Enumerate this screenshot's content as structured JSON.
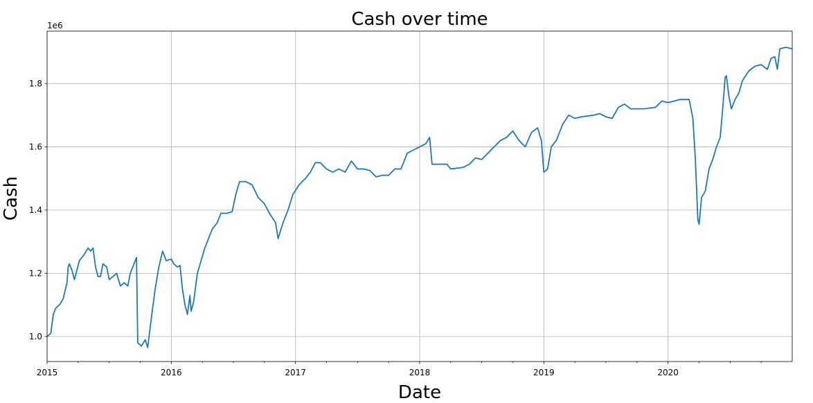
{
  "chart_data": {
    "type": "line",
    "title": "Cash over time",
    "x_label": "Date",
    "y_label": "Cash",
    "y_offset_label": "1e6",
    "x": [
      2015.0,
      2015.03,
      2015.05,
      2015.07,
      2015.1,
      2015.13,
      2015.16,
      2015.17,
      2015.18,
      2015.2,
      2015.22,
      2015.24,
      2015.26,
      2015.3,
      2015.33,
      2015.35,
      2015.37,
      2015.39,
      2015.41,
      2015.43,
      2015.45,
      2015.48,
      2015.5,
      2015.53,
      2015.56,
      2015.59,
      2015.62,
      2015.65,
      2015.67,
      2015.69,
      2015.72,
      2015.73,
      2015.76,
      2015.79,
      2015.81,
      2015.84,
      2015.87,
      2015.9,
      2015.93,
      2015.96,
      2016.0,
      2016.02,
      2016.05,
      2016.07,
      2016.09,
      2016.11,
      2016.13,
      2016.15,
      2016.16,
      2016.18,
      2016.21,
      2016.24,
      2016.27,
      2016.3,
      2016.33,
      2016.37,
      2016.4,
      2016.45,
      2016.49,
      2016.52,
      2016.55,
      2016.6,
      2016.65,
      2016.7,
      2016.75,
      2016.79,
      2016.84,
      2016.86,
      2016.9,
      2016.94,
      2016.98,
      2017.03,
      2017.08,
      2017.12,
      2017.16,
      2017.2,
      2017.25,
      2017.3,
      2017.35,
      2017.4,
      2017.45,
      2017.5,
      2017.55,
      2017.6,
      2017.65,
      2017.7,
      2017.75,
      2017.8,
      2017.85,
      2017.9,
      2017.95,
      2018.0,
      2018.05,
      2018.08,
      2018.1,
      2018.15,
      2018.22,
      2018.25,
      2018.35,
      2018.4,
      2018.45,
      2018.5,
      2018.55,
      2018.6,
      2018.65,
      2018.7,
      2018.75,
      2018.8,
      2018.85,
      2018.9,
      2018.95,
      2018.98,
      2019.0,
      2019.03,
      2019.06,
      2019.1,
      2019.15,
      2019.2,
      2019.25,
      2019.3,
      2019.4,
      2019.45,
      2019.5,
      2019.55,
      2019.6,
      2019.65,
      2019.7,
      2019.8,
      2019.9,
      2019.95,
      2020.0,
      2020.05,
      2020.1,
      2020.17,
      2020.2,
      2020.22,
      2020.24,
      2020.25,
      2020.27,
      2020.3,
      2020.33,
      2020.36,
      2020.39,
      2020.42,
      2020.44,
      2020.46,
      2020.47,
      2020.49,
      2020.51,
      2020.54,
      2020.57,
      2020.6,
      2020.65,
      2020.7,
      2020.75,
      2020.8,
      2020.83,
      2020.86,
      2020.88,
      2020.9,
      2020.95,
      2021.0
    ],
    "series": [
      {
        "name": "Cash",
        "color": "#1f77b4",
        "values": [
          1.0,
          1.01,
          1.07,
          1.09,
          1.1,
          1.12,
          1.17,
          1.22,
          1.23,
          1.21,
          1.18,
          1.21,
          1.24,
          1.26,
          1.28,
          1.27,
          1.28,
          1.22,
          1.19,
          1.19,
          1.23,
          1.22,
          1.18,
          1.19,
          1.2,
          1.16,
          1.17,
          1.16,
          1.2,
          1.22,
          1.25,
          0.98,
          0.97,
          0.99,
          0.965,
          1.06,
          1.15,
          1.22,
          1.27,
          1.24,
          1.245,
          1.23,
          1.22,
          1.225,
          1.15,
          1.1,
          1.07,
          1.13,
          1.08,
          1.11,
          1.2,
          1.24,
          1.28,
          1.31,
          1.34,
          1.36,
          1.39,
          1.39,
          1.395,
          1.45,
          1.49,
          1.49,
          1.48,
          1.44,
          1.42,
          1.39,
          1.36,
          1.31,
          1.36,
          1.4,
          1.45,
          1.48,
          1.5,
          1.52,
          1.55,
          1.55,
          1.53,
          1.52,
          1.53,
          1.52,
          1.555,
          1.53,
          1.53,
          1.525,
          1.505,
          1.51,
          1.51,
          1.53,
          1.53,
          1.58,
          1.59,
          1.6,
          1.61,
          1.63,
          1.545,
          1.545,
          1.545,
          1.53,
          1.535,
          1.545,
          1.565,
          1.56,
          1.58,
          1.6,
          1.62,
          1.63,
          1.65,
          1.62,
          1.6,
          1.645,
          1.66,
          1.62,
          1.52,
          1.53,
          1.6,
          1.62,
          1.67,
          1.7,
          1.69,
          1.695,
          1.7,
          1.705,
          1.695,
          1.69,
          1.725,
          1.735,
          1.72,
          1.72,
          1.725,
          1.745,
          1.74,
          1.745,
          1.75,
          1.75,
          1.69,
          1.56,
          1.37,
          1.355,
          1.44,
          1.46,
          1.53,
          1.56,
          1.6,
          1.63,
          1.72,
          1.82,
          1.825,
          1.76,
          1.72,
          1.75,
          1.77,
          1.81,
          1.84,
          1.855,
          1.86,
          1.845,
          1.88,
          1.885,
          1.845,
          1.91,
          1.915,
          1.91
        ]
      }
    ],
    "xlim": [
      2015,
      2021
    ],
    "xticks": [
      2015,
      2016,
      2017,
      2018,
      2019,
      2020
    ],
    "xminorticks": [
      2015.25,
      2015.5,
      2015.75,
      2016.25,
      2016.5,
      2016.75,
      2017.25,
      2017.5,
      2017.75,
      2018.25,
      2018.5,
      2018.75,
      2019.25,
      2019.5,
      2019.75,
      2020.25,
      2020.5,
      2020.75
    ],
    "ylim": [
      0.921,
      1.966
    ],
    "yticks": [
      {
        "value": 1.0,
        "label": "1.0"
      },
      {
        "value": 1.2,
        "label": "1.2"
      },
      {
        "value": 1.4,
        "label": "1.4"
      },
      {
        "value": 1.6,
        "label": "1.6"
      },
      {
        "value": 1.8,
        "label": "1.8"
      }
    ],
    "grid": true
  }
}
